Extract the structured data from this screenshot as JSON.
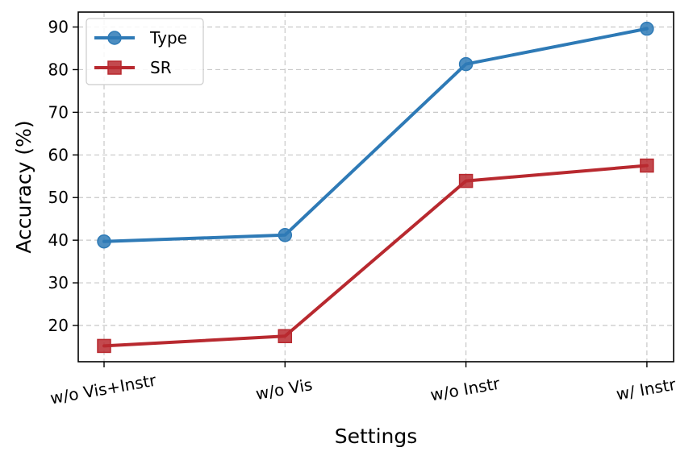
{
  "chart_data": {
    "type": "line",
    "title": "",
    "xlabel": "Settings",
    "ylabel": "Accuracy (%)",
    "categories": [
      "w/o Vis+Instr",
      "w/o Vis",
      "w/o Instr",
      "w/ Instr"
    ],
    "yticks": [
      20,
      30,
      40,
      50,
      60,
      70,
      80,
      90
    ],
    "ylim": [
      11.5,
      93.5
    ],
    "grid": true,
    "legend_position": "upper-left",
    "series": [
      {
        "name": "Type",
        "values": [
          39.7,
          41.2,
          81.3,
          89.6
        ],
        "color": "#2e7ab6",
        "marker": "circle"
      },
      {
        "name": "SR",
        "values": [
          15.2,
          17.5,
          53.9,
          57.5
        ],
        "color": "#b8292f",
        "marker": "square"
      }
    ]
  }
}
